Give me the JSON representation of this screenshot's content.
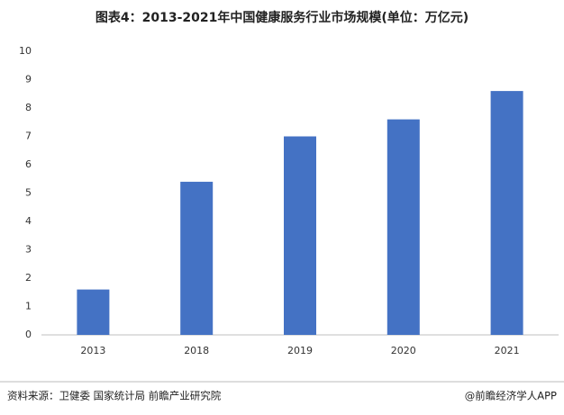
{
  "chart_data": {
    "type": "bar",
    "title": "图表4：2013-2021年中国健康服务行业市场规模(单位：万亿元)",
    "categories": [
      "2013",
      "2018",
      "2019",
      "2020",
      "2021"
    ],
    "values": [
      1.6,
      5.4,
      7.0,
      7.6,
      8.6
    ],
    "color": "#4472c4",
    "ylim": [
      0,
      10
    ],
    "yticks": [
      0,
      1,
      2,
      3,
      4,
      5,
      6,
      7,
      8,
      9,
      10
    ],
    "grid": false,
    "source": "资料来源：卫健委 国家统计局 前瞻产业研究院",
    "credit": "@前瞻经济学人APP"
  }
}
